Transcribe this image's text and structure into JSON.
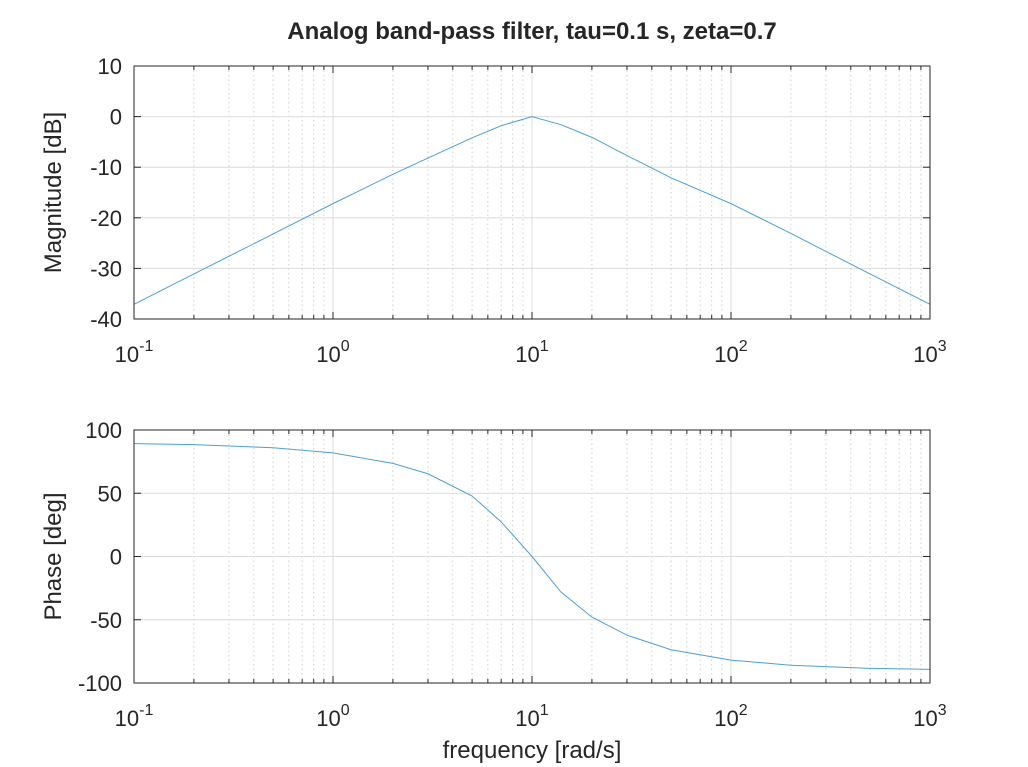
{
  "chart_data": {
    "title": "Analog band-pass filter, tau=0.1 s, zeta=0.7",
    "line_color": "#4d9fd4",
    "subplots": [
      {
        "type": "line",
        "ylabel": "Magnitude [dB]",
        "xlabel": "",
        "xscale": "log",
        "xlim": [
          0.1,
          1000
        ],
        "ylim": [
          -40,
          10
        ],
        "yticks": [
          -40,
          -30,
          -20,
          -10,
          0,
          10
        ],
        "xticks": [
          {
            "base": "10",
            "exp": "-1"
          },
          {
            "base": "10",
            "exp": "0"
          },
          {
            "base": "10",
            "exp": "1"
          },
          {
            "base": "10",
            "exp": "2"
          },
          {
            "base": "10",
            "exp": "3"
          }
        ],
        "grid": true,
        "series": [
          {
            "x": [
              0.1,
              0.2,
              0.5,
              1,
              2,
              3,
              5,
              7,
              10,
              14,
              20,
              30,
              50,
              100,
              200,
              500,
              1000
            ],
            "y": [
              -37.1,
              -31.1,
              -23.2,
              -17.2,
              -11.4,
              -8.2,
              -4.2,
              -1.8,
              0.0,
              -1.6,
              -4.1,
              -7.7,
              -12.1,
              -17.2,
              -23.1,
              -31.1,
              -37.1
            ]
          }
        ]
      },
      {
        "type": "line",
        "ylabel": "Phase [deg]",
        "xlabel": "frequency [rad/s]",
        "xscale": "log",
        "xlim": [
          0.1,
          1000
        ],
        "ylim": [
          -100,
          100
        ],
        "yticks": [
          -100,
          -50,
          0,
          50,
          100
        ],
        "xticks": [
          {
            "base": "10",
            "exp": "-1"
          },
          {
            "base": "10",
            "exp": "0"
          },
          {
            "base": "10",
            "exp": "1"
          },
          {
            "base": "10",
            "exp": "2"
          },
          {
            "base": "10",
            "exp": "3"
          }
        ],
        "grid": true,
        "series": [
          {
            "x": [
              0.1,
              0.2,
              0.5,
              1,
              2,
              3,
              5,
              7,
              10,
              14,
              20,
              30,
              50,
              100,
              200,
              500,
              1000
            ],
            "y": [
              89.2,
              88.4,
              86.0,
              81.9,
              73.6,
              65.4,
              47.8,
              27.4,
              0.0,
              -28.2,
              -47.9,
              -62.2,
              -73.7,
              -81.9,
              -86.0,
              -88.4,
              -89.2
            ]
          }
        ]
      }
    ]
  }
}
